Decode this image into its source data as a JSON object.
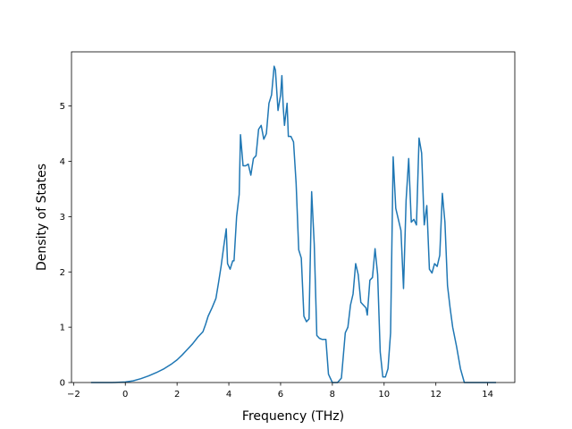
{
  "chart_data": {
    "type": "line",
    "title": "",
    "xlabel": "Frequency (THz)",
    "ylabel": "Density of States",
    "xlim": [
      -2.08,
      15.05
    ],
    "ylim": [
      0,
      5.98
    ],
    "xticks": [
      -2,
      0,
      2,
      4,
      6,
      8,
      10,
      12,
      14
    ],
    "xtick_labels": [
      "−2",
      "0",
      "2",
      "4",
      "6",
      "8",
      "10",
      "12",
      "14"
    ],
    "yticks": [
      0,
      1,
      2,
      3,
      4,
      5
    ],
    "ytick_labels": [
      "0",
      "1",
      "2",
      "3",
      "4",
      "5"
    ],
    "grid": false,
    "legend": "none",
    "line_color": "#1f77b4",
    "series": [
      {
        "x": [
          -1.3,
          -0.5,
          0,
          0.3,
          0.6,
          0.9,
          1.2,
          1.5,
          1.8,
          2.0,
          2.2,
          2.4,
          2.6,
          2.8,
          3.0,
          3.1,
          3.2,
          3.35,
          3.5,
          3.6,
          3.7,
          3.8,
          3.9,
          3.95,
          4.05,
          4.15,
          4.2,
          4.3,
          4.4,
          4.45,
          4.55,
          4.65,
          4.75,
          4.85,
          4.95,
          5.05,
          5.15,
          5.25,
          5.35,
          5.45,
          5.55,
          5.65,
          5.75,
          5.8,
          5.9,
          6.0,
          6.05,
          6.1,
          6.15,
          6.25,
          6.3,
          6.4,
          6.5,
          6.6,
          6.7,
          6.8,
          6.9,
          7.0,
          7.1,
          7.2,
          7.3,
          7.4,
          7.5,
          7.6,
          7.75,
          7.85,
          8.0,
          8.2,
          8.35,
          8.5,
          8.6,
          8.7,
          8.8,
          8.9,
          9.0,
          9.1,
          9.2,
          9.3,
          9.35,
          9.45,
          9.55,
          9.65,
          9.75,
          9.85,
          9.95,
          10.05,
          10.15,
          10.25,
          10.35,
          10.45,
          10.55,
          10.65,
          10.75,
          10.85,
          10.95,
          11.05,
          11.15,
          11.25,
          11.35,
          11.45,
          11.55,
          11.65,
          11.75,
          11.85,
          11.95,
          12.05,
          12.15,
          12.25,
          12.35,
          12.45,
          12.55,
          12.65,
          12.8,
          12.95,
          13.1,
          13.3,
          13.6,
          14.0,
          14.3
        ],
        "y": [
          0,
          0,
          0.01,
          0.03,
          0.07,
          0.12,
          0.18,
          0.25,
          0.34,
          0.41,
          0.5,
          0.6,
          0.7,
          0.82,
          0.92,
          1.05,
          1.2,
          1.35,
          1.52,
          1.8,
          2.1,
          2.45,
          2.78,
          2.15,
          2.05,
          2.2,
          2.2,
          3.0,
          3.4,
          4.48,
          3.92,
          3.92,
          3.95,
          3.75,
          4.05,
          4.1,
          4.58,
          4.65,
          4.4,
          4.5,
          5.05,
          5.2,
          5.72,
          5.65,
          4.92,
          5.2,
          5.55,
          5.0,
          4.65,
          5.05,
          4.45,
          4.45,
          4.35,
          3.6,
          2.4,
          2.25,
          1.2,
          1.1,
          1.15,
          3.45,
          2.5,
          0.85,
          0.8,
          0.78,
          0.78,
          0.15,
          0.0,
          0.0,
          0.08,
          0.9,
          1.0,
          1.4,
          1.6,
          2.15,
          1.95,
          1.45,
          1.4,
          1.35,
          1.22,
          1.85,
          1.9,
          2.42,
          1.95,
          0.55,
          0.1,
          0.1,
          0.25,
          0.9,
          4.08,
          3.15,
          2.95,
          2.75,
          1.7,
          3.3,
          4.05,
          2.9,
          2.95,
          2.85,
          4.42,
          4.15,
          2.85,
          3.2,
          2.05,
          1.98,
          2.15,
          2.1,
          2.3,
          3.42,
          2.9,
          1.75,
          1.35,
          1.0,
          0.65,
          0.25,
          0.0,
          0.0,
          0.0,
          0.0,
          0.0
        ]
      }
    ]
  }
}
